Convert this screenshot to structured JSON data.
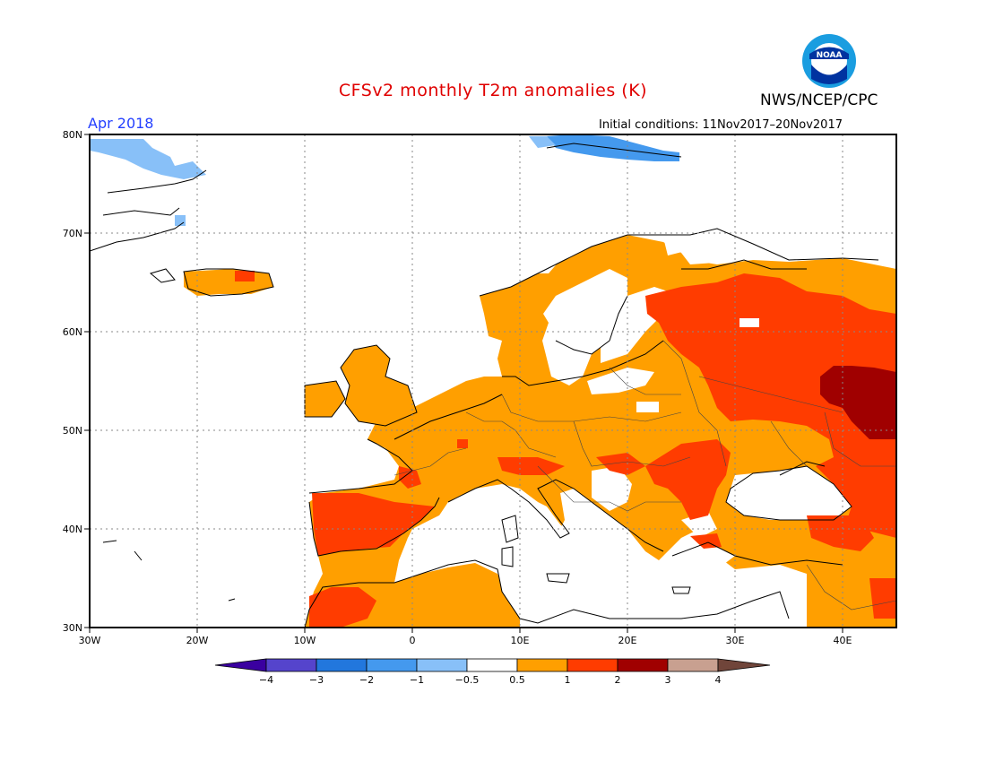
{
  "header": {
    "title": "CFSv2 monthly T2m anomalies (K)",
    "credit": "NWS/NCEP/CPC",
    "logo_text": "NOAA",
    "target_month": "Apr 2018",
    "initial_conditions": "Initial conditions: 11Nov2017–20Nov2017"
  },
  "map": {
    "lat_labels": [
      "80N",
      "70N",
      "60N",
      "50N",
      "40N",
      "30N"
    ],
    "lon_labels": [
      "30W",
      "20W",
      "10W",
      "0",
      "10E",
      "20E",
      "30E",
      "40E"
    ]
  },
  "legend": {
    "tick_labels": [
      "−4",
      "−3",
      "−2",
      "−1",
      "−0.5",
      "0.5",
      "1",
      "2",
      "3",
      "4"
    ],
    "colors": [
      "#3a00a0",
      "#5544cc",
      "#2277dd",
      "#4499ee",
      "#88c0f8",
      "#ffffff",
      "#ff9f00",
      "#ff3c00",
      "#a00000",
      "#c8a090",
      "#70453a"
    ]
  },
  "colors": {
    "orange": "#ff9f00",
    "red": "#ff3c00",
    "darkred": "#a00000",
    "lightblue": "#88c0f8",
    "blue": "#4499ee"
  }
}
